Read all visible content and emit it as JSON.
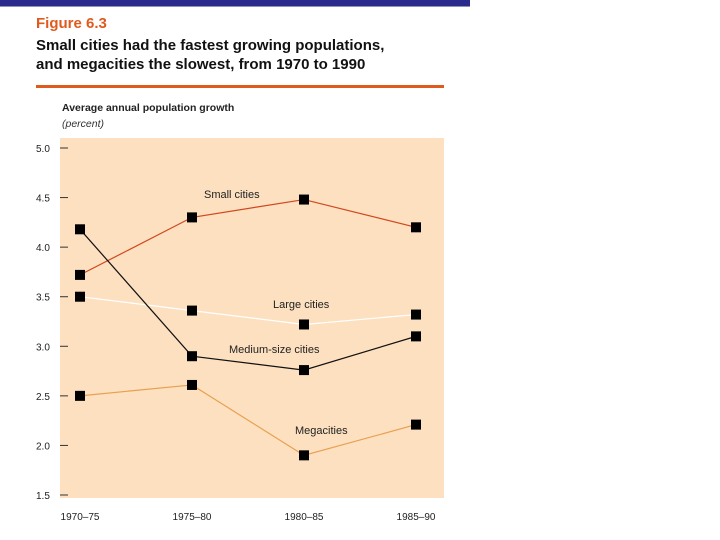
{
  "figure": {
    "label": "Figure 6.3",
    "title_line1": "Small cities had the fastest growing populations,",
    "title_line2": "and megacities the slowest, from 1970 to 1990"
  },
  "colors": {
    "accent": "#e05a1e",
    "plot_bg": "#fce0c0",
    "small": "#d2461e",
    "medium": "#111111",
    "large": "#ffffff",
    "mega": "#e8a050"
  },
  "chart_data": {
    "type": "line",
    "title": "Small cities had the fastest growing populations, and megacities the slowest, from 1970 to 1990",
    "ylabel": "Average annual population growth",
    "yunit": "(percent)",
    "xlabel": "",
    "categories": [
      "1970–75",
      "1975–80",
      "1980–85",
      "1985–90"
    ],
    "ylim": [
      1.5,
      5.0
    ],
    "yticks": [
      "1.5",
      "2.0",
      "2.5",
      "3.0",
      "3.5",
      "4.0",
      "4.5",
      "5.0"
    ],
    "grid": false,
    "series": [
      {
        "name": "Small cities",
        "key": "small",
        "values": [
          3.72,
          4.3,
          4.48,
          4.2
        ]
      },
      {
        "name": "Large cities",
        "key": "large",
        "values": [
          3.5,
          3.36,
          3.22,
          3.32
        ]
      },
      {
        "name": "Medium-size cities",
        "key": "medium",
        "values": [
          4.18,
          2.9,
          2.76,
          3.1
        ]
      },
      {
        "name": "Megacities",
        "key": "mega",
        "values": [
          2.5,
          2.61,
          1.9,
          2.21
        ]
      }
    ]
  }
}
